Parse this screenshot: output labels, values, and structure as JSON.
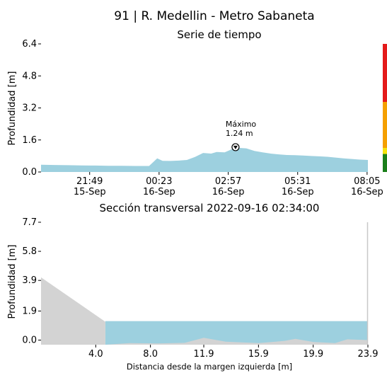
{
  "station_title": "91 | R. Medellin - Metro Sabaneta",
  "chart_data": [
    {
      "type": "area",
      "title": "Serie de tiempo",
      "xlabel": "",
      "ylabel": "Profundidad [m]",
      "ylim": [
        0,
        6.4
      ],
      "yticks": [
        "0.0",
        "1.6",
        "3.2",
        "4.8",
        "6.4"
      ],
      "xlim_hours": [
        0,
        9.0
      ],
      "xticks": [
        {
          "x": 1.8,
          "time": "21:49",
          "date": "15-Sep"
        },
        {
          "x": 4.37,
          "time": "00:23",
          "date": "16-Sep"
        },
        {
          "x": 6.93,
          "time": "02:57",
          "date": "16-Sep"
        },
        {
          "x": 9.5,
          "time": "05:31",
          "date": "16-Sep"
        },
        {
          "x": 12.07,
          "time": "08:05",
          "date": "16-Sep"
        }
      ],
      "x": [
        0,
        0.5,
        1.0,
        1.5,
        2.0,
        2.5,
        3.0,
        3.5,
        4.0,
        4.3,
        4.5,
        4.8,
        5.1,
        5.4,
        5.7,
        6.0,
        6.3,
        6.5,
        6.8,
        7.0,
        7.2,
        7.4,
        7.6,
        7.9,
        8.2,
        8.5,
        8.8,
        9.1,
        9.4,
        9.7,
        10.0,
        10.3,
        10.6,
        10.9,
        11.2,
        11.5,
        11.8,
        12.1
      ],
      "y": [
        0.36,
        0.35,
        0.34,
        0.33,
        0.32,
        0.31,
        0.31,
        0.3,
        0.3,
        0.68,
        0.56,
        0.55,
        0.57,
        0.6,
        0.75,
        0.95,
        0.92,
        1.0,
        0.98,
        1.1,
        1.24,
        1.2,
        1.18,
        1.05,
        0.98,
        0.92,
        0.88,
        0.85,
        0.84,
        0.82,
        0.8,
        0.78,
        0.76,
        0.72,
        0.68,
        0.65,
        0.62,
        0.6
      ],
      "annotation": {
        "label": "Máximo",
        "value": "1.24 m",
        "x": 7.2,
        "y": 1.24
      },
      "level_bar": [
        {
          "from": 0,
          "to": 0.9,
          "color": "#1a7f1a"
        },
        {
          "from": 0.9,
          "to": 1.2,
          "color": "#f5e50a"
        },
        {
          "from": 1.2,
          "to": 3.5,
          "color": "#f5a000"
        },
        {
          "from": 3.5,
          "to": 6.4,
          "color": "#e41a1a"
        }
      ],
      "fill_color": "#9dd0df"
    },
    {
      "type": "area",
      "title": "Sección transversal 2022-09-16 02:34:00",
      "xlabel": "Distancia desde la margen izquierda [m]",
      "ylabel": "Profundidad [m]",
      "ylim": [
        -0.3,
        7.7
      ],
      "yticks": [
        "0.0",
        "1.9",
        "3.9",
        "5.8",
        "7.7"
      ],
      "xlim": [
        0,
        23.9
      ],
      "xticks": [
        "4.0",
        "8.0",
        "11.9",
        "15.9",
        "19.9",
        "23.9"
      ],
      "water_level": 1.24,
      "water_from_x": 4.7,
      "water_color": "#9dd0df",
      "ground_color": "#d3d3d3",
      "ground_x": [
        0,
        4.7,
        4.7,
        6.5,
        8.5,
        10.5,
        11.9,
        13.5,
        15.9,
        17.8,
        18.6,
        19.9,
        21.5,
        22.4,
        23.9
      ],
      "ground_y": [
        4.1,
        1.2,
        -0.3,
        -0.2,
        -0.22,
        -0.18,
        0.15,
        -0.1,
        -0.2,
        -0.05,
        0.08,
        -0.12,
        -0.2,
        0.05,
        0.0
      ]
    }
  ]
}
